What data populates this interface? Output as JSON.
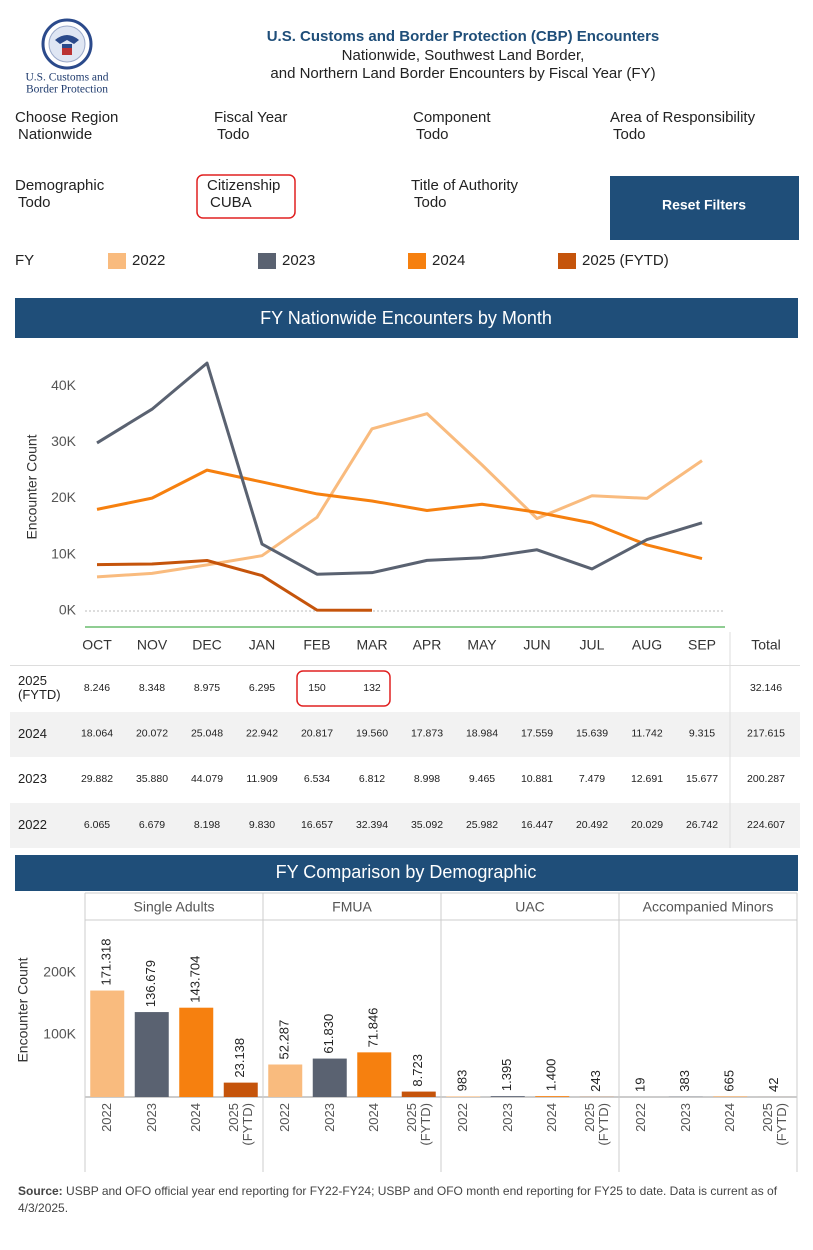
{
  "header": {
    "title": "U.S. Customs and Border Protection (CBP) Encounters",
    "subtitle_lines": [
      "Nationwide, Southwest Land Border,",
      "and Northern Land Border Encounters by Fiscal Year (FY)"
    ],
    "logo_lines": [
      "U.S. Customs and",
      "Border Protection"
    ]
  },
  "filters": [
    {
      "label": "Choose Region",
      "value": "Nationwide"
    },
    {
      "label": "Fiscal Year",
      "value": "Todo"
    },
    {
      "label": "Component",
      "value": "Todo"
    },
    {
      "label": "Area of Responsibility",
      "value": "Todo"
    },
    {
      "label": "Demographic",
      "value": "Todo"
    },
    {
      "label": "Citizenship",
      "value": "CUBA"
    },
    {
      "label": "Title of Authority",
      "value": "Todo"
    }
  ],
  "reset_button": "Reset Filters",
  "legend_label": "FY",
  "chart_data": [
    {
      "type": "line",
      "title": "FY Nationwide Encounters by Month",
      "y_label": "Encounter Count",
      "categories": [
        "OCT",
        "NOV",
        "DEC",
        "JAN",
        "FEB",
        "MAR",
        "APR",
        "MAY",
        "JUN",
        "JUL",
        "AUG",
        "SEP"
      ],
      "total_header": "Total",
      "ylim": [
        -2850,
        47300
      ],
      "yticks": [
        {
          "value": 0,
          "label": "0K"
        },
        {
          "value": 10000,
          "label": "10K"
        },
        {
          "value": 20000,
          "label": "20K"
        },
        {
          "value": 30000,
          "label": "30K"
        },
        {
          "value": 40000,
          "label": "40K"
        }
      ],
      "series": [
        {
          "name": "2022",
          "color": "#f9bb7e",
          "values": [
            6065,
            6679,
            8198,
            9830,
            16657,
            32394,
            35092,
            25982,
            16447,
            20492,
            20029,
            26742
          ],
          "value_labels": [
            "6.065",
            "6.679",
            "8.198",
            "9.830",
            "16.657",
            "32.394",
            "35.092",
            "25.982",
            "16.447",
            "20.492",
            "20.029",
            "26.742"
          ],
          "total": 224607,
          "total_label": "224.607"
        },
        {
          "name": "2023",
          "color": "#5a6271",
          "values": [
            29882,
            35880,
            44079,
            11909,
            6534,
            6812,
            8998,
            9465,
            10881,
            7479,
            12691,
            15677
          ],
          "value_labels": [
            "29.882",
            "35.880",
            "44.079",
            "11.909",
            "6.534",
            "6.812",
            "8.998",
            "9.465",
            "10.881",
            "7.479",
            "12.691",
            "15.677"
          ],
          "total": 200287,
          "total_label": "200.287"
        },
        {
          "name": "2024",
          "color": "#f6800f",
          "values": [
            18064,
            20072,
            25048,
            22942,
            20817,
            19560,
            17873,
            18984,
            17559,
            15639,
            11742,
            9315
          ],
          "value_labels": [
            "18.064",
            "20.072",
            "25.048",
            "22.942",
            "20.817",
            "19.560",
            "17.873",
            "18.984",
            "17.559",
            "15.639",
            "11.742",
            "9.315"
          ],
          "total": 217615,
          "total_label": "217.615"
        },
        {
          "name": "2025 (FYTD)",
          "color": "#c5540b",
          "values": [
            8246,
            8348,
            8975,
            6295,
            150,
            132,
            null,
            null,
            null,
            null,
            null,
            null
          ],
          "value_labels": [
            "8.246",
            "8.348",
            "8.975",
            "6.295",
            "150",
            "132",
            null,
            null,
            null,
            null,
            null,
            null
          ],
          "total": 32146,
          "total_label": "32.146"
        }
      ]
    },
    {
      "type": "bar",
      "title": "FY Comparison by Demographic",
      "y_label": "Encounter Count",
      "categories": [
        "Single Adults",
        "FMUA",
        "UAC",
        "Accompanied Minors"
      ],
      "ylim": [
        0,
        280000
      ],
      "yticks": [
        {
          "value": 100000,
          "label": "100K"
        },
        {
          "value": 200000,
          "label": "200K"
        }
      ],
      "series": [
        {
          "name": "2022",
          "color": "#f9bb7e",
          "values": [
            171318,
            52287,
            983,
            19
          ],
          "value_labels": [
            "171.318",
            "52.287",
            "983",
            "19"
          ]
        },
        {
          "name": "2023",
          "color": "#5a6271",
          "values": [
            136679,
            61830,
            1395,
            383
          ],
          "value_labels": [
            "136.679",
            "61.830",
            "1.395",
            "383"
          ]
        },
        {
          "name": "2024",
          "color": "#f6800f",
          "values": [
            143704,
            71846,
            1400,
            665
          ],
          "value_labels": [
            "143.704",
            "71.846",
            "1.400",
            "665"
          ]
        },
        {
          "name": "2025 (FYTD)",
          "color": "#c5540b",
          "values": [
            23138,
            8723,
            243,
            42
          ],
          "value_labels": [
            "23.138",
            "8.723",
            "243",
            "42"
          ]
        }
      ]
    }
  ],
  "footer": {
    "source_label": "Source:",
    "source_text": "USBP and OFO official year end reporting for FY22-FY24; USBP and OFO month end reporting for FY25 to date. Data is current as of 4/3/2025."
  }
}
